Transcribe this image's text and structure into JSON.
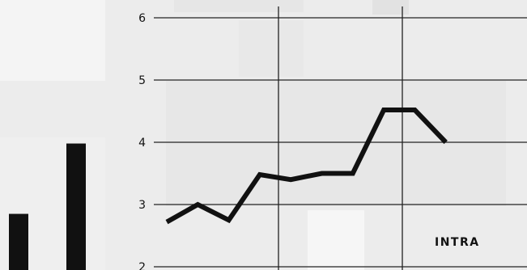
{
  "chart_data": [
    {
      "type": "bar",
      "categories": [
        "",
        ""
      ],
      "values": [
        2.85,
        3.98
      ],
      "ylim": [
        2,
        6
      ],
      "bar_color": "#111111"
    },
    {
      "type": "line",
      "x": [
        1,
        2,
        3,
        4,
        5,
        6,
        7,
        8,
        9,
        10
      ],
      "series": [
        {
          "name": "INTRA",
          "values": [
            2.72,
            3.0,
            2.75,
            3.48,
            3.4,
            3.5,
            3.5,
            4.52,
            4.52,
            4.0
          ]
        }
      ],
      "ylim": [
        2,
        6
      ],
      "y_ticks": [
        "2",
        "3",
        "4",
        "5",
        "6"
      ],
      "grid": true,
      "line_color": "#111111"
    }
  ]
}
